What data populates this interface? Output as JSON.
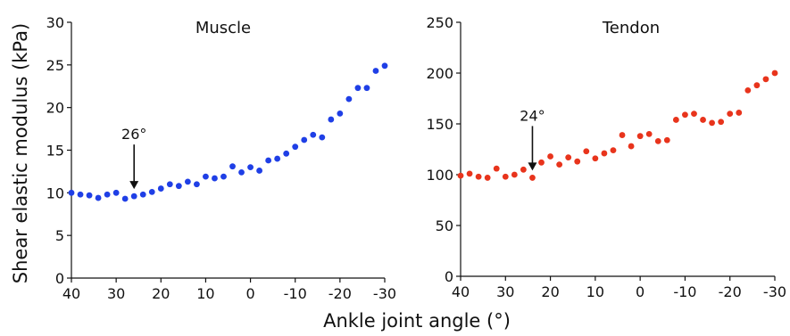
{
  "figure": {
    "ylabel": "Shear elastic modulus (kPa)",
    "xlabel": "Ankle joint angle (°)"
  },
  "chart_data": [
    {
      "type": "scatter",
      "title": "Muscle",
      "ylim": [
        0,
        30
      ],
      "yticks": [
        "0",
        "5",
        "10",
        "15",
        "20",
        "25",
        "30"
      ],
      "xlim": [
        40,
        -30
      ],
      "xticks": [
        "40",
        "30",
        "20",
        "10",
        "0",
        "-10",
        "-20",
        "-30"
      ],
      "grid": false,
      "color": "#1f3fe6",
      "annotation": {
        "text": "26°",
        "x": 26
      },
      "x": [
        40,
        38,
        36,
        34,
        32,
        30,
        28,
        26,
        24,
        22,
        20,
        18,
        16,
        14,
        12,
        10,
        8,
        6,
        4,
        2,
        0,
        -2,
        -4,
        -6,
        -8,
        -10,
        -12,
        -14,
        -16,
        -18,
        -20,
        -22,
        -24,
        -26,
        -28,
        -30
      ],
      "y": [
        10.0,
        9.8,
        9.7,
        9.4,
        9.8,
        10.0,
        9.3,
        9.6,
        9.8,
        10.1,
        10.5,
        11.0,
        10.8,
        11.3,
        11.0,
        11.9,
        11.7,
        11.9,
        13.1,
        12.4,
        13.0,
        12.6,
        13.8,
        14.0,
        14.6,
        15.4,
        16.2,
        16.8,
        16.5,
        18.6,
        19.3,
        21.0,
        22.3,
        22.3,
        24.3,
        24.9
      ]
    },
    {
      "type": "scatter",
      "title": "Tendon",
      "ylim": [
        0,
        250
      ],
      "yticks": [
        "0",
        "50",
        "100",
        "150",
        "200",
        "250"
      ],
      "xlim": [
        40,
        -30
      ],
      "xticks": [
        "40",
        "30",
        "20",
        "10",
        "0",
        "-10",
        "-20",
        "-30"
      ],
      "grid": false,
      "color": "#e8341c",
      "annotation": {
        "text": "24°",
        "x": 24
      },
      "x": [
        40,
        38,
        36,
        34,
        32,
        30,
        28,
        26,
        24,
        22,
        20,
        18,
        16,
        14,
        12,
        10,
        8,
        6,
        4,
        2,
        0,
        -2,
        -4,
        -6,
        -8,
        -10,
        -12,
        -14,
        -16,
        -18,
        -20,
        -22,
        -24,
        -26,
        -28,
        -30
      ],
      "y": [
        99,
        101,
        98,
        97,
        106,
        98,
        100,
        105,
        97,
        112,
        118,
        110,
        117,
        113,
        123,
        116,
        121,
        124,
        139,
        128,
        138,
        140,
        133,
        134,
        154,
        159,
        160,
        154,
        151,
        152,
        160,
        161,
        183,
        188,
        194,
        200
      ]
    }
  ]
}
